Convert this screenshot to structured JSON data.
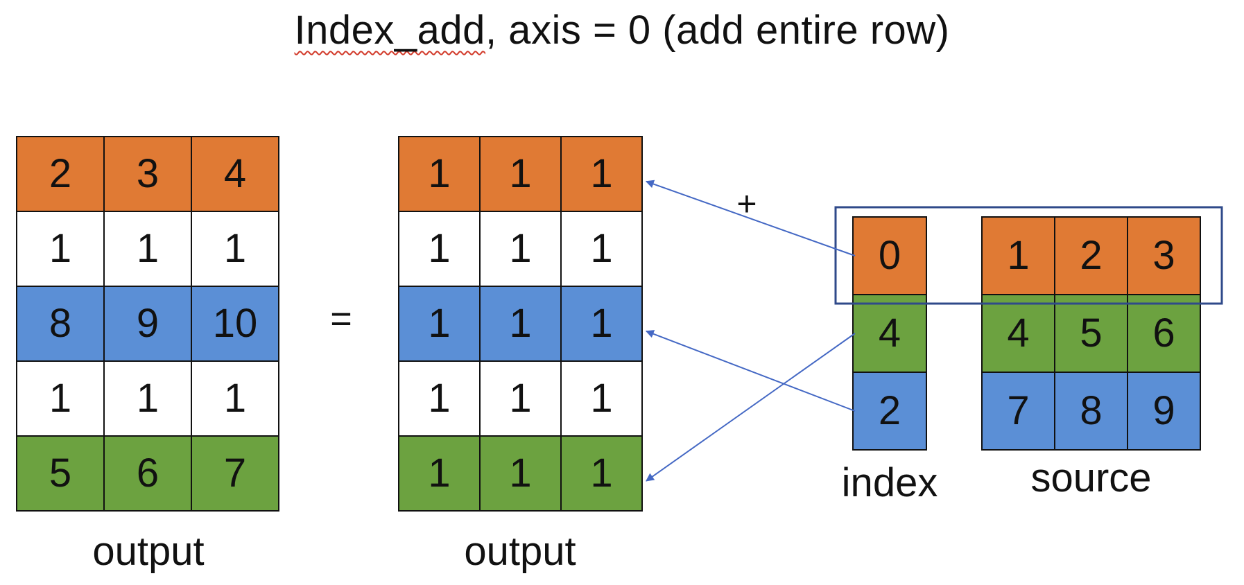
{
  "title": {
    "squiggled": "Index_add",
    "rest": ", axis = 0 (add entire row)"
  },
  "colors": {
    "orange": "#E07A34",
    "white": "#FFFFFF",
    "blue": "#5B8FD6",
    "green": "#6CA240",
    "arrow": "#4468C4",
    "box": "#2F4A8A"
  },
  "result": {
    "caption": "output",
    "row_colors": [
      "orange",
      "white",
      "blue",
      "white",
      "green"
    ],
    "rows": [
      [
        "2",
        "3",
        "4"
      ],
      [
        "1",
        "1",
        "1"
      ],
      [
        "8",
        "9",
        "10"
      ],
      [
        "1",
        "1",
        "1"
      ],
      [
        "5",
        "6",
        "7"
      ]
    ]
  },
  "equals": "=",
  "input": {
    "caption": "output",
    "row_colors": [
      "orange",
      "white",
      "blue",
      "white",
      "green"
    ],
    "rows": [
      [
        "1",
        "1",
        "1"
      ],
      [
        "1",
        "1",
        "1"
      ],
      [
        "1",
        "1",
        "1"
      ],
      [
        "1",
        "1",
        "1"
      ],
      [
        "1",
        "1",
        "1"
      ]
    ]
  },
  "plus": "+",
  "index": {
    "caption": "index",
    "row_colors": [
      "orange",
      "green",
      "blue"
    ],
    "rows": [
      [
        "0"
      ],
      [
        "4"
      ],
      [
        "2"
      ]
    ]
  },
  "source": {
    "caption": "source",
    "row_colors": [
      "orange",
      "green",
      "blue"
    ],
    "rows": [
      [
        "1",
        "2",
        "3"
      ],
      [
        "4",
        "5",
        "6"
      ],
      [
        "7",
        "8",
        "9"
      ]
    ]
  },
  "arrows": [
    {
      "from_index_row": 0,
      "to_output_row": 0
    },
    {
      "from_index_row": 2,
      "to_output_row": 2
    },
    {
      "from_index_row": 1,
      "to_output_row": 4
    }
  ]
}
